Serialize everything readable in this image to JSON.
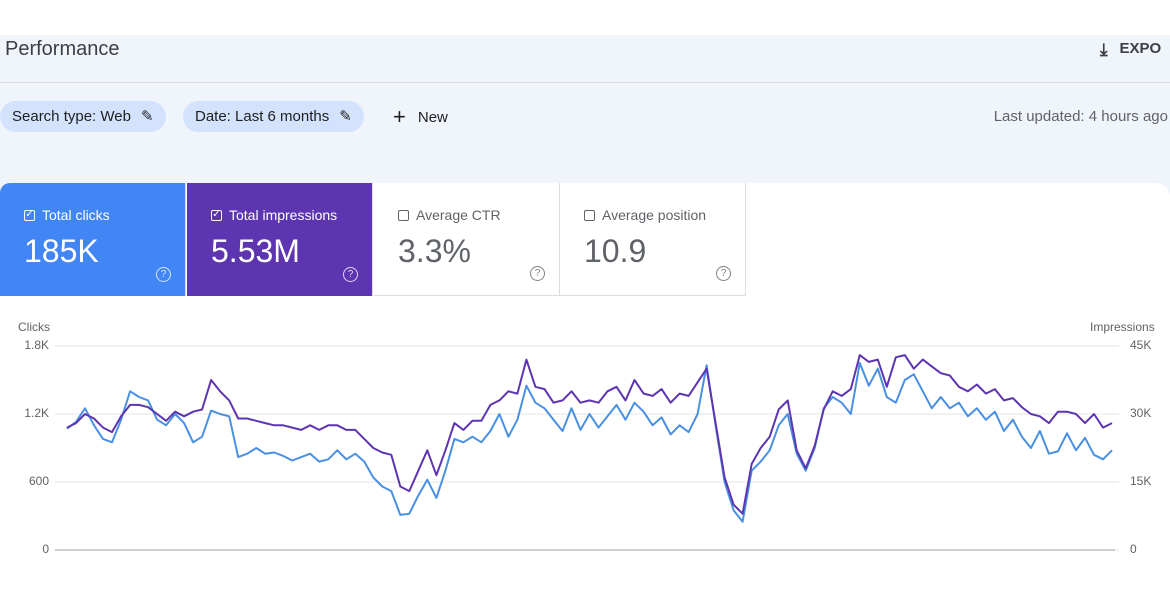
{
  "header": {
    "title": "Performance",
    "export": "EXPO"
  },
  "filters": [
    "Search type: Web",
    "Date: Last 6 months"
  ],
  "new_button": "New",
  "last_updated": "Last updated: 4 hours ago",
  "metrics": [
    {
      "label": "Total clicks",
      "value": "185K"
    },
    {
      "label": "Total impressions",
      "value": "5.53M"
    },
    {
      "label": "Average CTR",
      "value": "3.3%"
    },
    {
      "label": "Average position",
      "value": "10.9"
    }
  ],
  "chart_data": {
    "type": "line",
    "y_label": "Clicks",
    "y2_label": "Impressions",
    "ylim": [
      0,
      1800
    ],
    "yticks": [
      0,
      600,
      {
        "value": 1200,
        "label": "1.2K"
      },
      {
        "value": 1800,
        "label": "1.8K"
      }
    ],
    "y2lim": [
      0,
      45000
    ],
    "y2ticks": [
      0,
      {
        "value": 15000,
        "label": "15K"
      },
      {
        "value": 30000,
        "label": "30K"
      },
      {
        "value": 45000,
        "label": "45K"
      }
    ],
    "grid": true,
    "series": [
      {
        "color": "#4a90e2",
        "values": [
          1070,
          1130,
          1250,
          1100,
          980,
          950,
          1150,
          1400,
          1350,
          1320,
          1150,
          1100,
          1200,
          1120,
          950,
          1000,
          1230,
          1200,
          1180,
          820,
          850,
          900,
          850,
          860,
          830,
          790,
          820,
          850,
          780,
          800,
          880,
          800,
          850,
          780,
          640,
          560,
          520,
          310,
          320,
          480,
          620,
          460,
          700,
          980,
          950,
          1000,
          950,
          1050,
          1200,
          1000,
          1150,
          1450,
          1300,
          1250,
          1150,
          1050,
          1250,
          1060,
          1200,
          1080,
          1180,
          1280,
          1150,
          1300,
          1220,
          1100,
          1170,
          1020,
          1100,
          1040,
          1200,
          1630,
          1100,
          600,
          350,
          250,
          700,
          780,
          880,
          1100,
          1200,
          850,
          700,
          900,
          1250,
          1350,
          1300,
          1200,
          1650,
          1450,
          1600,
          1350,
          1300,
          1500,
          1550,
          1400,
          1250,
          1350,
          1250,
          1300,
          1180,
          1250,
          1150,
          1220,
          1050,
          1150,
          1000,
          900,
          1050,
          850,
          870,
          1030,
          880,
          990,
          840,
          800,
          880
        ]
      },
      {
        "color": "#5e35b1",
        "axis": "y2",
        "values": [
          27000,
          28000,
          30000,
          29000,
          27000,
          26000,
          29500,
          32000,
          32000,
          31500,
          30000,
          28500,
          30500,
          29500,
          30500,
          31000,
          37500,
          35000,
          33000,
          29000,
          29000,
          28500,
          28000,
          27500,
          27500,
          27000,
          26500,
          27500,
          26500,
          27500,
          27500,
          26500,
          26500,
          24500,
          22500,
          21500,
          21000,
          14000,
          13000,
          17500,
          22000,
          16500,
          22000,
          28000,
          26500,
          28500,
          28500,
          32000,
          33000,
          35000,
          34500,
          42000,
          36000,
          35500,
          32500,
          33000,
          35000,
          32500,
          33000,
          32500,
          35000,
          36000,
          33000,
          37500,
          34500,
          34000,
          35500,
          32500,
          34500,
          34000,
          37000,
          40000,
          28000,
          16000,
          10000,
          8000,
          19000,
          22500,
          25000,
          31000,
          33000,
          22000,
          18000,
          23000,
          31000,
          35000,
          34000,
          35500,
          43000,
          41500,
          42000,
          36000,
          42500,
          43000,
          40000,
          42000,
          40500,
          39000,
          38500,
          36000,
          35000,
          36500,
          34500,
          35500,
          33000,
          33500,
          31500,
          30000,
          29500,
          28000,
          30500,
          30500,
          30000,
          28000,
          30000,
          27000,
          28000
        ]
      }
    ]
  }
}
